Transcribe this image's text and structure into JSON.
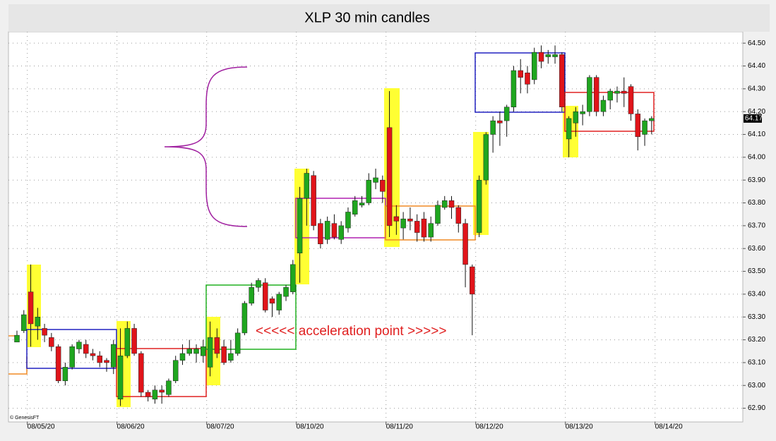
{
  "chart_data": {
    "type": "candlestick",
    "title": "XLP 30 min candles",
    "annotation": "<<<<< acceleration point >>>>>",
    "credit": "© GenesisFT",
    "last_value": 64.17,
    "up_color": "#1fa61f",
    "down_color": "#e0141a",
    "grid": true,
    "categories": [
      null,
      null,
      "08/05/20",
      null,
      null,
      null,
      null,
      null,
      null,
      null,
      null,
      null,
      null,
      null,
      null,
      "08/06/20",
      null,
      null,
      null,
      null,
      null,
      null,
      null,
      null,
      null,
      null,
      null,
      null,
      "08/07/20",
      null,
      null,
      null,
      null,
      null,
      null,
      null,
      null,
      null,
      null,
      null,
      null,
      "08/10/20",
      null,
      null,
      null,
      null,
      null,
      null,
      null,
      null,
      null,
      null,
      null,
      null,
      "08/11/20",
      null,
      null,
      null,
      null,
      null,
      null,
      null,
      null,
      null,
      null,
      null,
      null,
      "08/12/20",
      null,
      null,
      null,
      null,
      null,
      null,
      null,
      null,
      null,
      null,
      null,
      null,
      "08/13/20",
      null,
      null,
      null,
      null,
      null,
      null,
      null,
      null,
      null,
      null,
      null,
      null,
      "08/14/20"
    ],
    "open": [
      63.19,
      63.24,
      63.41,
      63.26,
      63.25,
      63.21,
      63.17,
      63.02,
      63.08,
      63.16,
      63.18,
      63.14,
      63.13,
      63.11,
      63.08,
      62.94,
      63.13,
      63.25,
      63.14,
      62.97,
      62.94,
      62.98,
      62.96,
      63.02,
      63.11,
      63.14,
      63.14,
      63.13,
      63.08,
      63.21,
      63.17,
      63.11,
      63.14,
      63.23,
      63.36,
      63.43,
      63.45,
      63.38,
      63.33,
      63.39,
      63.41,
      63.58,
      63.82,
      63.92,
      63.71,
      63.64,
      63.71,
      63.64,
      63.69,
      63.75,
      63.79,
      63.8,
      63.89,
      63.9,
      64.13,
      63.74,
      63.69,
      63.73,
      63.72,
      63.73,
      63.65,
      63.71,
      63.78,
      63.81,
      63.78,
      63.71,
      63.52,
      63.67,
      63.9,
      64.1,
      64.16,
      64.16,
      64.22,
      64.38,
      64.37,
      64.34,
      64.46,
      64.44,
      64.44,
      64.45,
      64.08,
      64.15,
      64.19,
      64.2,
      64.35,
      64.2,
      64.25,
      64.28,
      64.29,
      64.31,
      64.19,
      64.1,
      64.16,
      null
    ],
    "high": [
      63.24,
      63.33,
      63.53,
      63.34,
      63.27,
      63.23,
      63.18,
      63.1,
      63.18,
      63.2,
      63.2,
      63.16,
      63.15,
      63.12,
      63.2,
      63.25,
      63.28,
      63.27,
      63.15,
      62.98,
      63.0,
      63.0,
      63.03,
      63.13,
      63.18,
      63.2,
      63.18,
      63.2,
      63.28,
      63.25,
      63.2,
      63.2,
      63.25,
      63.37,
      63.45,
      63.47,
      63.47,
      63.39,
      63.41,
      63.44,
      63.55,
      63.87,
      63.95,
      63.94,
      63.73,
      63.74,
      63.75,
      63.72,
      63.78,
      63.83,
      63.83,
      63.93,
      63.95,
      63.92,
      64.29,
      63.79,
      63.76,
      63.78,
      63.75,
      63.76,
      63.74,
      63.81,
      63.83,
      63.83,
      63.79,
      63.73,
      63.53,
      63.92,
      64.11,
      64.18,
      64.2,
      64.23,
      64.4,
      64.43,
      64.4,
      64.48,
      64.49,
      64.47,
      64.49,
      64.46,
      64.18,
      64.22,
      64.23,
      64.36,
      64.36,
      64.27,
      64.3,
      64.31,
      64.35,
      64.32,
      64.21,
      64.17,
      64.18,
      null
    ],
    "low": [
      63.19,
      63.23,
      63.17,
      63.2,
      63.19,
      63.15,
      63.01,
      63.0,
      63.07,
      63.14,
      63.12,
      63.11,
      63.08,
      63.06,
      63.05,
      62.91,
      63.12,
      63.13,
      62.95,
      62.93,
      62.92,
      62.92,
      62.95,
      63.01,
      63.09,
      63.13,
      63.1,
      63.1,
      63.04,
      63.12,
      63.09,
      63.1,
      63.13,
      63.22,
      63.35,
      63.41,
      63.32,
      63.3,
      63.31,
      63.37,
      63.4,
      63.45,
      63.7,
      63.68,
      63.6,
      63.62,
      63.64,
      63.62,
      63.67,
      63.74,
      63.78,
      63.79,
      63.86,
      63.8,
      63.65,
      63.66,
      63.64,
      63.68,
      63.63,
      63.63,
      63.63,
      63.7,
      63.77,
      63.73,
      63.67,
      63.43,
      63.22,
      63.65,
      63.88,
      64.02,
      64.05,
      64.09,
      64.2,
      64.28,
      64.28,
      64.32,
      64.39,
      64.41,
      64.41,
      64.2,
      64.0,
      64.09,
      64.14,
      64.18,
      64.18,
      64.18,
      64.21,
      64.24,
      64.22,
      64.16,
      64.03,
      64.05,
      64.1,
      null
    ],
    "close": [
      63.22,
      63.31,
      63.27,
      63.3,
      63.22,
      63.17,
      63.02,
      63.08,
      63.17,
      63.19,
      63.14,
      63.13,
      63.1,
      63.1,
      63.18,
      63.13,
      63.25,
      63.14,
      62.97,
      62.95,
      62.98,
      62.97,
      63.02,
      63.11,
      63.14,
      63.16,
      63.16,
      63.17,
      63.21,
      63.14,
      63.1,
      63.14,
      63.23,
      63.36,
      63.43,
      63.46,
      63.33,
      63.36,
      63.4,
      63.43,
      63.53,
      63.82,
      63.93,
      63.7,
      63.62,
      63.72,
      63.65,
      63.7,
      63.76,
      63.81,
      63.8,
      63.9,
      63.91,
      63.85,
      63.7,
      63.72,
      63.73,
      63.72,
      63.67,
      63.65,
      63.71,
      63.79,
      63.81,
      63.78,
      63.71,
      63.53,
      63.4,
      63.9,
      64.1,
      64.16,
      64.15,
      64.22,
      64.38,
      64.35,
      64.32,
      64.46,
      64.42,
      64.45,
      64.45,
      64.22,
      64.17,
      64.2,
      64.2,
      64.35,
      64.2,
      64.25,
      64.29,
      64.29,
      64.28,
      64.19,
      64.09,
      64.16,
      64.17,
      null
    ],
    "ylim": [
      62.84,
      64.55
    ],
    "yticks": [
      {
        "value": 62.9,
        "label": "62.90"
      },
      {
        "value": 63.0,
        "label": "63.00"
      },
      {
        "value": 63.1,
        "label": "63.10"
      },
      {
        "value": 63.2,
        "label": "63.20"
      },
      {
        "value": 63.3,
        "label": "63.30"
      },
      {
        "value": 63.4,
        "label": "63.40"
      },
      {
        "value": 63.5,
        "label": "63.50"
      },
      {
        "value": 63.6,
        "label": "63.60"
      },
      {
        "value": 63.7,
        "label": "63.70"
      },
      {
        "value": 63.8,
        "label": "63.80"
      },
      {
        "value": 63.9,
        "label": "63.90"
      },
      {
        "value": 64.0,
        "label": "64.00"
      },
      {
        "value": 64.1,
        "label": "64.10"
      },
      {
        "value": 64.2,
        "label": "64.20"
      },
      {
        "value": 64.3,
        "label": "64.30"
      },
      {
        "value": 64.4,
        "label": "64.40"
      },
      {
        "value": 64.5,
        "label": "64.50"
      }
    ]
  }
}
